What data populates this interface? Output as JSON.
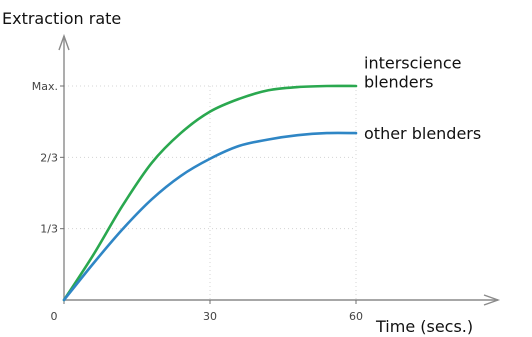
{
  "chart_data": {
    "type": "line",
    "title": "",
    "xlabel": "Time (secs.)",
    "ylabel": "Extraction rate",
    "xlim": [
      0,
      60
    ],
    "ylim": [
      0,
      1
    ],
    "grid": true,
    "x_ticks": [
      {
        "value": 0,
        "label": "0"
      },
      {
        "value": 30,
        "label": "30"
      },
      {
        "value": 60,
        "label": "60"
      }
    ],
    "y_ticks": [
      {
        "value": 0.3333,
        "label": "1/3"
      },
      {
        "value": 0.6667,
        "label": "2/3"
      },
      {
        "value": 1.0,
        "label": "Max."
      }
    ],
    "series": [
      {
        "name": "interscience blenders",
        "label_lines": [
          "interscience",
          "blenders"
        ],
        "color": "#2aa84f",
        "points": [
          [
            0,
            0
          ],
          [
            6,
            0.21
          ],
          [
            12,
            0.44
          ],
          [
            18,
            0.64
          ],
          [
            24,
            0.78
          ],
          [
            30,
            0.88
          ],
          [
            36,
            0.94
          ],
          [
            42,
            0.98
          ],
          [
            48,
            0.995
          ],
          [
            54,
            1.0
          ],
          [
            60,
            1.0
          ]
        ]
      },
      {
        "name": "other blenders",
        "label_lines": [
          "other blenders"
        ],
        "color": "#2f86c5",
        "points": [
          [
            0,
            0
          ],
          [
            6,
            0.17
          ],
          [
            12,
            0.33
          ],
          [
            18,
            0.47
          ],
          [
            24,
            0.58
          ],
          [
            30,
            0.66
          ],
          [
            36,
            0.72
          ],
          [
            42,
            0.75
          ],
          [
            48,
            0.77
          ],
          [
            54,
            0.78
          ],
          [
            60,
            0.78
          ]
        ]
      }
    ]
  }
}
